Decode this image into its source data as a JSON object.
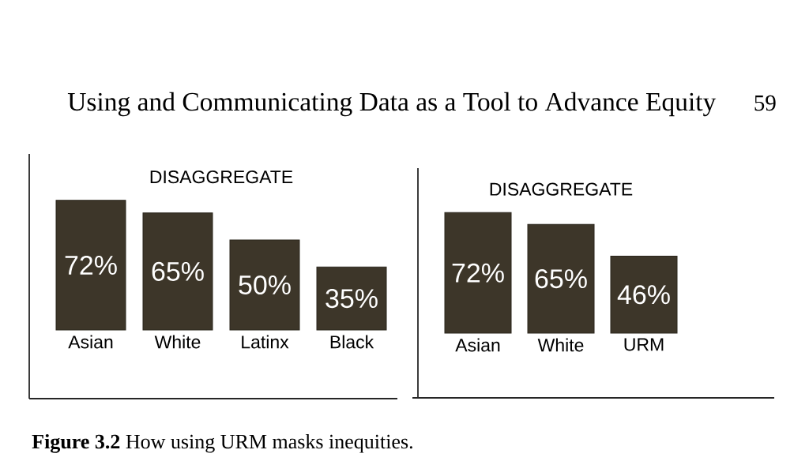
{
  "chart_data": [
    {
      "type": "bar",
      "title": "DISAGGREGATE",
      "categories": [
        "Asian",
        "White",
        "Latinx",
        "Black"
      ],
      "values": [
        72,
        65,
        50,
        35
      ],
      "value_labels": [
        "72%",
        "65%",
        "50%",
        "35%"
      ],
      "color": "#3d3629",
      "ylim": [
        0,
        72
      ],
      "annotations": [
        "Using and Communicating Data as a Tool to Advance Equity",
        "59",
        "**Figure 3.2** How using URM masks inequities."
      ]
    },
    {
      "type": "bar",
      "title": "DISAGGREGATE",
      "categories": [
        "Asian",
        "White",
        "URM"
      ],
      "values": [
        72,
        65,
        46
      ],
      "value_labels": [
        "72%",
        "65%",
        "46%"
      ],
      "color": "#3d3629",
      "ylim": [
        0,
        72
      ]
    }
  ]
}
